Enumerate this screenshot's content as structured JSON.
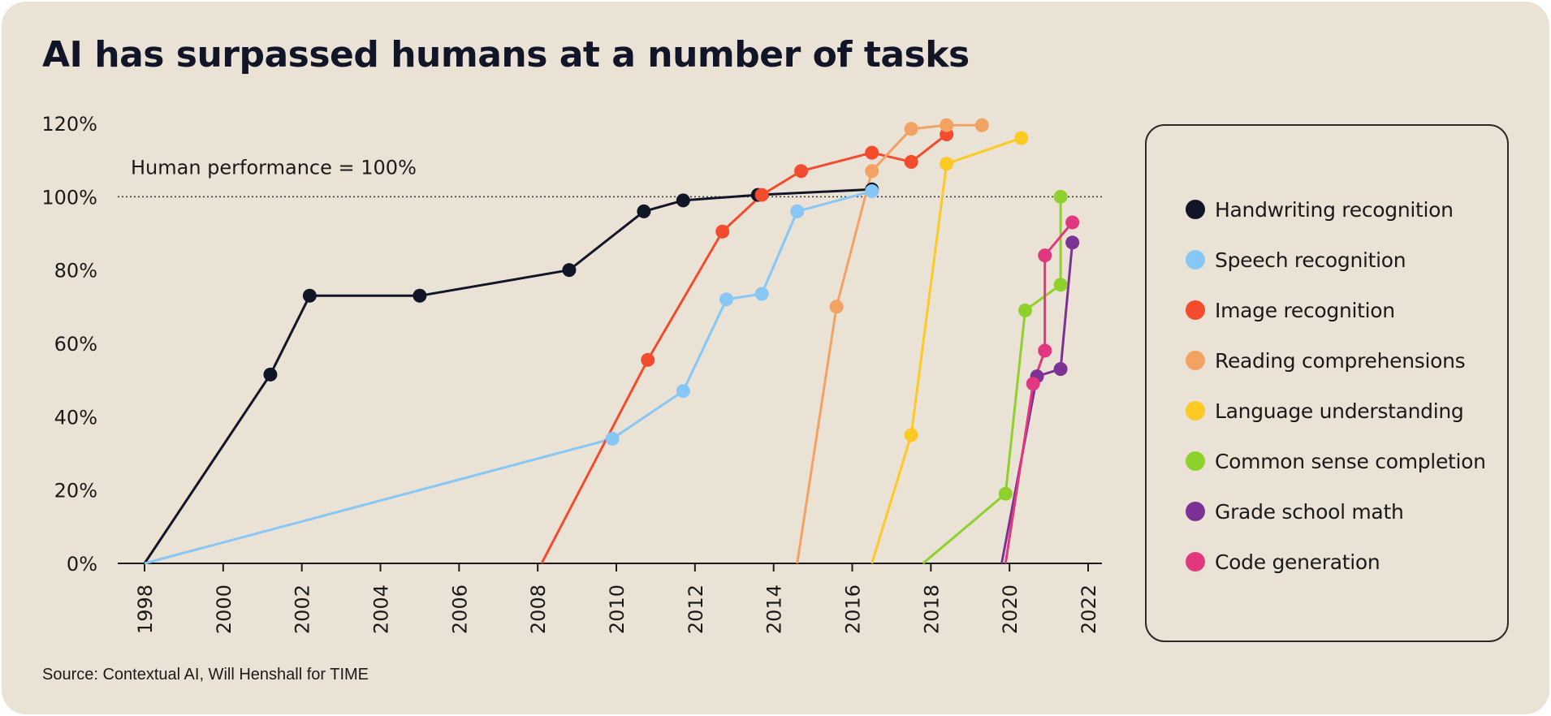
{
  "chart_data": {
    "type": "line",
    "title": "AI has surpassed humans at a number of tasks",
    "source": "Source: Contextual AI, Will Henshall for TIME",
    "annotation": "Human performance = 100%",
    "reference_line": 100,
    "xlabel": "",
    "ylabel": "",
    "xlim": [
      1998,
      2022
    ],
    "ylim": [
      0,
      120
    ],
    "x_ticks": [
      "1998",
      "2000",
      "2002",
      "2004",
      "2006",
      "2008",
      "2010",
      "2012",
      "2014",
      "2016",
      "2018",
      "2020",
      "2022"
    ],
    "y_ticks": [
      "0%",
      "20%",
      "40%",
      "60%",
      "80%",
      "100%",
      "120%"
    ],
    "grid": false,
    "legend_position": "right",
    "series": [
      {
        "name": "Handwriting recognition",
        "color": "#111528",
        "points": [
          [
            1998,
            0,
            false
          ],
          [
            2001.2,
            51.5,
            true
          ],
          [
            2002.2,
            73,
            true
          ],
          [
            2005,
            73,
            true
          ],
          [
            2008.8,
            80,
            true
          ],
          [
            2010.7,
            96,
            true
          ],
          [
            2011.7,
            99,
            true
          ],
          [
            2013.6,
            100.5,
            true
          ],
          [
            2016.5,
            102,
            true
          ]
        ]
      },
      {
        "name": "Speech recognition",
        "color": "#86c7f5",
        "points": [
          [
            1998,
            0,
            false
          ],
          [
            2009.9,
            34,
            true
          ],
          [
            2011.7,
            47,
            true
          ],
          [
            2012.8,
            72,
            true
          ],
          [
            2013.7,
            73.5,
            true
          ],
          [
            2014.6,
            96,
            true
          ],
          [
            2016.5,
            101.5,
            true
          ]
        ]
      },
      {
        "name": "Image recognition",
        "color": "#f24b2e",
        "points": [
          [
            2008.1,
            0,
            false
          ],
          [
            2010.8,
            55.5,
            true
          ],
          [
            2012.7,
            90.5,
            true
          ],
          [
            2013.7,
            100.5,
            true
          ],
          [
            2014.7,
            107,
            true
          ],
          [
            2016.5,
            112,
            true
          ],
          [
            2017.5,
            109.5,
            true
          ],
          [
            2018.4,
            117,
            true
          ]
        ]
      },
      {
        "name": "Reading comprehensions",
        "color": "#f2a262",
        "points": [
          [
            2014.6,
            0,
            false
          ],
          [
            2015.6,
            70,
            true
          ],
          [
            2016.5,
            107,
            true
          ],
          [
            2017.5,
            118.5,
            true
          ],
          [
            2018.4,
            119.5,
            true
          ],
          [
            2019.3,
            119.5,
            true
          ]
        ]
      },
      {
        "name": "Language understanding",
        "color": "#fdc923",
        "points": [
          [
            2016.5,
            0,
            false
          ],
          [
            2017.5,
            35,
            true
          ],
          [
            2018.4,
            109,
            true
          ],
          [
            2020.3,
            116,
            true
          ]
        ]
      },
      {
        "name": "Common sense completion",
        "color": "#8fd12c",
        "points": [
          [
            2017.8,
            0,
            false
          ],
          [
            2019.9,
            19,
            true
          ],
          [
            2020.4,
            69,
            true
          ],
          [
            2021.3,
            76,
            true
          ],
          [
            2021.3,
            100,
            true
          ]
        ]
      },
      {
        "name": "Grade school math",
        "color": "#7c3294",
        "points": [
          [
            2019.8,
            0,
            false
          ],
          [
            2020.7,
            51,
            true
          ],
          [
            2021.3,
            53,
            true
          ],
          [
            2021.6,
            87.5,
            true
          ]
        ]
      },
      {
        "name": "Code generation",
        "color": "#e0377f",
        "points": [
          [
            2019.9,
            0,
            false
          ],
          [
            2020.6,
            49,
            true
          ],
          [
            2020.9,
            58,
            true
          ],
          [
            2020.9,
            84,
            true
          ],
          [
            2021.6,
            93,
            true
          ]
        ]
      }
    ]
  }
}
